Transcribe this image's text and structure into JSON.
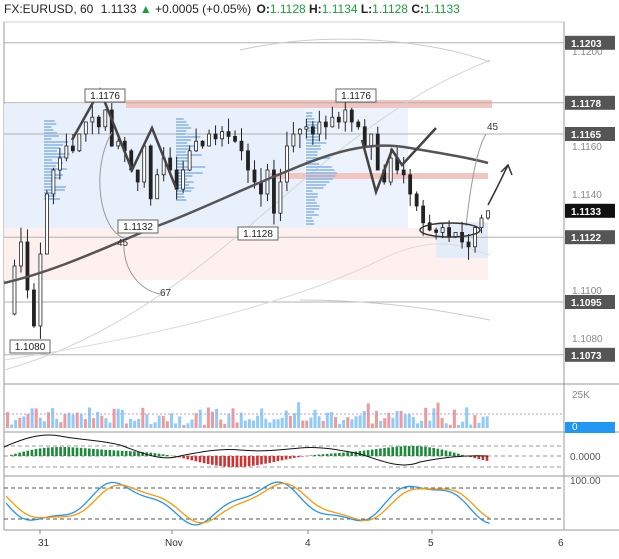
{
  "header": {
    "symbol": "FX:EURUSD, 60",
    "last": "1.1133",
    "change": "+0.0005 (+0.05%)",
    "o_label": "O:",
    "o": "1.1128",
    "h_label": "H:",
    "h": "1.1134",
    "l_label": "L:",
    "l": "1.1128",
    "c_label": "C:",
    "c": "1.1133",
    "up_color": "#1b9e3a"
  },
  "price_axis": {
    "ticks": [
      "1.1200",
      "1.1160",
      "1.1140",
      "1.1100",
      "1.1080"
    ],
    "level_tags": [
      {
        "text": "1.1203",
        "value": 1.1203
      },
      {
        "text": "1.1178",
        "value": 1.1178
      },
      {
        "text": "1.1165",
        "value": 1.1165
      },
      {
        "text": "1.1133",
        "value": 1.1133,
        "current": true
      },
      {
        "text": "1.1122",
        "value": 1.1122
      },
      {
        "text": "1.1095",
        "value": 1.1095
      },
      {
        "text": "1.1073",
        "value": 1.1073
      }
    ]
  },
  "annotations": {
    "high_left": "1.1176",
    "high_right": "1.1176",
    "low_1": "1.1132",
    "low_2": "1.1128",
    "low_3": "1.1080",
    "fib_45_left": "45",
    "fib_67": "67",
    "fib_45_right": "45"
  },
  "volume_axis": {
    "ticks": [
      "25K",
      "0"
    ]
  },
  "macd_axis": {
    "ticks": [
      "0.0000"
    ]
  },
  "stoch_axis": {
    "ticks": [
      "100.00"
    ]
  },
  "time_axis": {
    "labels": [
      "31",
      "Nov",
      "4",
      "5",
      "6"
    ]
  },
  "colors": {
    "up": "#26a65b",
    "down": "#ef5350",
    "label_bg": "#555555",
    "current_bg": "#111111",
    "ma": "#555555",
    "rsi": "#2196f3",
    "signal": "#ff9800"
  }
}
